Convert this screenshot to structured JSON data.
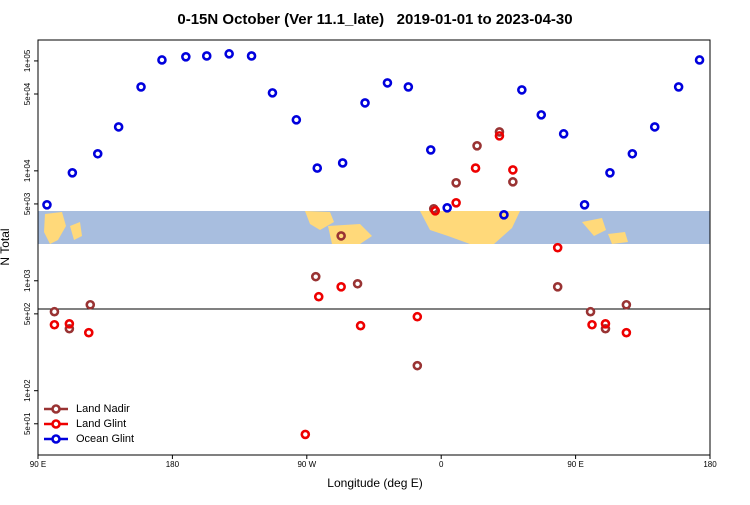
{
  "chart_data": {
    "type": "scatter",
    "title": "0-15N October (Ver 11.1_late)   2019-01-01 to 2023-04-30",
    "x_label": "Longitude (deg E)",
    "y_label": "N Total",
    "log_y": true,
    "legend": "bottom-left",
    "xlim": [
      90,
      540
    ],
    "xticks": [
      {
        "value": 90,
        "label": "90 E"
      },
      180,
      {
        "value": 270,
        "label": "90 W"
      },
      {
        "value": 360,
        "label": "0"
      },
      {
        "value": 450,
        "label": "90 E"
      },
      {
        "value": 540,
        "label": "180"
      }
    ],
    "ylim": [
      26,
      155000
    ],
    "yticks": [
      {
        "value": 50,
        "label": "5e+01"
      },
      {
        "value": 100,
        "label": "1e+02"
      },
      {
        "value": 500,
        "label": "5e+02"
      },
      {
        "value": 1000,
        "label": "1e+03"
      },
      {
        "value": 5000,
        "label": "5e+03"
      },
      {
        "value": 10000,
        "label": "1e+04"
      },
      {
        "value": 50000,
        "label": "5e+04"
      },
      {
        "value": 100000,
        "label": "1e+05"
      }
    ],
    "series": [
      {
        "name": "Land Nadir",
        "color": "#993333",
        "x": [
          101,
          111,
          125,
          276,
          293,
          304,
          344,
          355,
          370,
          384,
          399,
          408,
          438,
          460,
          470,
          484
        ],
        "values": [
          523,
          366,
          605,
          1090,
          2560,
          939,
          169,
          4520,
          7780,
          16900,
          22600,
          7940,
          881,
          523,
          366,
          605
        ]
      },
      {
        "name": "Land Glint",
        "color": "#ee0000",
        "x": [
          101,
          111,
          124,
          278,
          293,
          306,
          344,
          269,
          356,
          370,
          383,
          399,
          408,
          438,
          461,
          470,
          484
        ],
        "values": [
          398,
          406,
          337,
          716,
          881,
          390,
          471,
          40,
          4330,
          5120,
          10600,
          20800,
          10200,
          2000,
          398,
          406,
          337
        ]
      },
      {
        "name": "Ocean Glint",
        "color": "#0000dd",
        "x": [
          96,
          113,
          130,
          144,
          159,
          173,
          189,
          203,
          218,
          233,
          247,
          263,
          277,
          294,
          309,
          324,
          338,
          353,
          364,
          402,
          414,
          427,
          442,
          456,
          473,
          488,
          503,
          519,
          533
        ],
        "values": [
          4910,
          9600,
          14300,
          25100,
          58000,
          102000,
          109000,
          111000,
          116000,
          111000,
          51200,
          29100,
          10600,
          11800,
          41500,
          63100,
          58000,
          15500,
          4610,
          3980,
          54500,
          32300,
          21700,
          4910,
          9600,
          14300,
          25100,
          58000,
          102000
        ]
      }
    ]
  }
}
